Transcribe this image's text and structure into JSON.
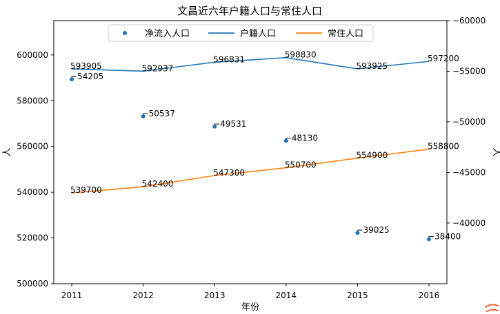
{
  "chart_data": {
    "type": "line",
    "title": "文昌近六年户籍人口与常住人口",
    "xlabel": "年份",
    "ylabel_left": "人",
    "ylabel_right": "人",
    "categories": [
      "2011",
      "2012",
      "2013",
      "2014",
      "2015",
      "2016"
    ],
    "left_axis": {
      "ylim": [
        500000,
        615000
      ],
      "ticks": [
        500000,
        520000,
        540000,
        560000,
        580000,
        600000
      ],
      "tick_labels": [
        "500000",
        "520000",
        "540000",
        "560000",
        "580000",
        "600000"
      ]
    },
    "right_axis": {
      "ylim": [
        -34000,
        -60000
      ],
      "inverted": true,
      "ticks": [
        -40000,
        -45000,
        -50000,
        -55000,
        -60000
      ],
      "tick_labels": [
        "−40000",
        "−45000",
        "−50000",
        "−55000",
        "−60000"
      ]
    },
    "series": [
      {
        "name": "户籍人口",
        "type": "line",
        "axis": "left",
        "color": "#1f77b4",
        "values": [
          593905,
          592937,
          596831,
          598830,
          593925,
          597200
        ],
        "labels": [
          "593905",
          "592937",
          "596831",
          "598830",
          "593925",
          "597200"
        ]
      },
      {
        "name": "常住人口",
        "type": "line",
        "axis": "left",
        "color": "#ff7f0e",
        "values": [
          539700,
          542400,
          547300,
          550700,
          554900,
          558800
        ],
        "labels": [
          "539700",
          "542400",
          "547300",
          "550700",
          "554900",
          "558800"
        ]
      },
      {
        "name": "净流入人口",
        "type": "scatter",
        "axis": "right",
        "color": "#1f77b4",
        "values": [
          -54205,
          -50537,
          -49531,
          -48130,
          -39025,
          -38400
        ],
        "labels": [
          "−54205",
          "−50537",
          "−49531",
          "−48130",
          "−39025",
          "−38400"
        ]
      }
    ],
    "legend": {
      "placement": "top-center",
      "entries": [
        "净流入人口",
        "户籍人口",
        "常住人口"
      ]
    },
    "grid": false
  }
}
